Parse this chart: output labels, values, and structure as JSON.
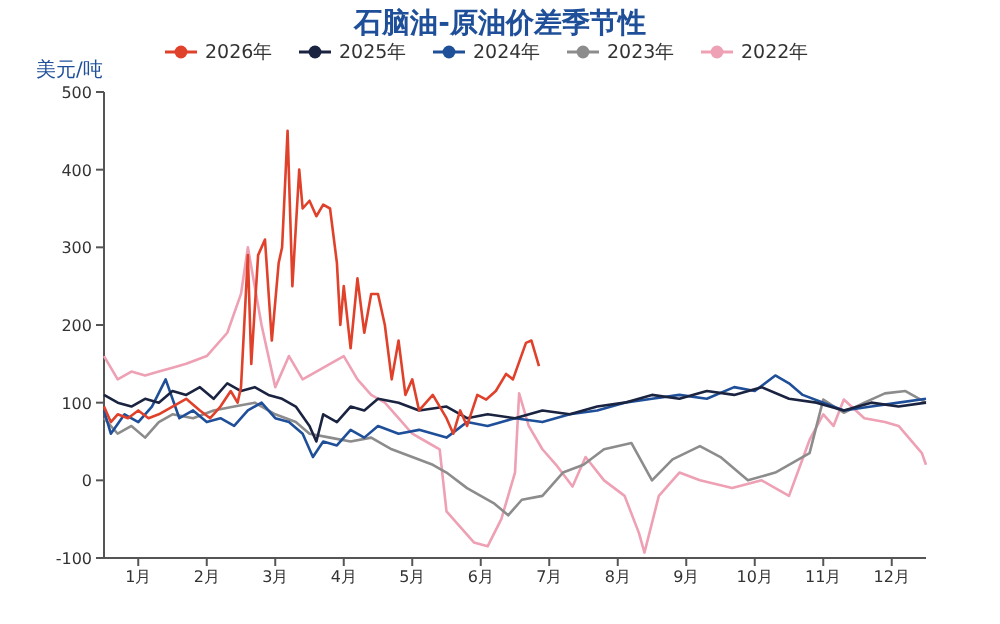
{
  "chart_data": {
    "type": "line",
    "title": "石脑油-原油价差季节性",
    "ylabel": "美元/吨",
    "legend": "top",
    "marker": "none",
    "grid": false,
    "xlim": [
      0,
      12
    ],
    "xticks": [
      {
        "value": 0.5,
        "label": "1月"
      },
      {
        "value": 1.5,
        "label": "2月"
      },
      {
        "value": 2.5,
        "label": "3月"
      },
      {
        "value": 3.5,
        "label": "4月"
      },
      {
        "value": 4.5,
        "label": "5月"
      },
      {
        "value": 5.5,
        "label": "6月"
      },
      {
        "value": 6.5,
        "label": "7月"
      },
      {
        "value": 7.5,
        "label": "8月"
      },
      {
        "value": 8.5,
        "label": "9月"
      },
      {
        "value": 9.5,
        "label": "10月"
      },
      {
        "value": 10.5,
        "label": "11月"
      },
      {
        "value": 11.5,
        "label": "12月"
      }
    ],
    "ylim": [
      -100,
      500
    ],
    "yticks": [
      -100,
      0,
      100,
      200,
      300,
      400,
      500
    ],
    "series": [
      {
        "name": "2026年",
        "color": "#e0412b",
        "x": [
          0,
          0.1,
          0.2,
          0.35,
          0.5,
          0.65,
          0.8,
          1.0,
          1.2,
          1.4,
          1.55,
          1.7,
          1.85,
          1.95,
          2.0,
          2.1,
          2.15,
          2.25,
          2.35,
          2.45,
          2.55,
          2.6,
          2.68,
          2.75,
          2.85,
          2.9,
          3.0,
          3.1,
          3.2,
          3.3,
          3.4,
          3.45,
          3.5,
          3.6,
          3.7,
          3.8,
          3.9,
          4.0,
          4.1,
          4.2,
          4.3,
          4.4,
          4.5,
          4.6,
          4.8,
          5.0,
          5.1,
          5.2,
          5.3,
          5.45,
          5.58,
          5.72,
          5.87,
          5.97,
          6.16,
          6.24,
          6.35
        ],
        "values": [
          95,
          75,
          85,
          80,
          90,
          80,
          85,
          95,
          105,
          90,
          80,
          95,
          115,
          100,
          120,
          290,
          150,
          290,
          310,
          180,
          280,
          300,
          450,
          250,
          400,
          350,
          360,
          340,
          355,
          350,
          280,
          200,
          250,
          170,
          260,
          190,
          240,
          240,
          200,
          130,
          180,
          110,
          130,
          90,
          110,
          80,
          60,
          90,
          70,
          110,
          104,
          115,
          137,
          130,
          177,
          180,
          147
        ]
      },
      {
        "name": "2025年",
        "color": "#1a2340",
        "x": [
          0,
          0.2,
          0.4,
          0.6,
          0.8,
          1.0,
          1.2,
          1.4,
          1.6,
          1.8,
          2.0,
          2.2,
          2.4,
          2.6,
          2.8,
          3.0,
          3.1,
          3.2,
          3.4,
          3.6,
          3.8,
          4.0,
          4.3,
          4.6,
          5.0,
          5.3,
          5.6,
          6.0,
          6.4,
          6.8,
          7.2,
          7.6,
          8.0,
          8.4,
          8.8,
          9.2,
          9.6,
          10.0,
          10.4,
          10.8,
          11.2,
          11.6,
          12.0
        ],
        "values": [
          110,
          100,
          95,
          105,
          100,
          115,
          110,
          120,
          105,
          125,
          115,
          120,
          110,
          105,
          95,
          70,
          50,
          85,
          75,
          95,
          90,
          105,
          100,
          90,
          95,
          80,
          85,
          80,
          90,
          85,
          95,
          100,
          110,
          105,
          115,
          110,
          120,
          105,
          100,
          90,
          100,
          95,
          100
        ]
      },
      {
        "name": "2024年",
        "color": "#1f4f99",
        "x": [
          0,
          0.1,
          0.3,
          0.5,
          0.7,
          0.9,
          1.1,
          1.3,
          1.5,
          1.7,
          1.9,
          2.1,
          2.3,
          2.5,
          2.7,
          2.9,
          3.05,
          3.2,
          3.4,
          3.6,
          3.8,
          4.0,
          4.3,
          4.6,
          5.0,
          5.3,
          5.6,
          6.0,
          6.4,
          6.8,
          7.2,
          7.6,
          8.0,
          8.4,
          8.8,
          9.2,
          9.5,
          9.8,
          10.0,
          10.2,
          10.5,
          10.8,
          11.2,
          11.6,
          12.0
        ],
        "values": [
          90,
          60,
          85,
          75,
          95,
          130,
          80,
          90,
          75,
          80,
          70,
          90,
          100,
          80,
          75,
          60,
          30,
          50,
          45,
          65,
          55,
          70,
          60,
          65,
          55,
          75,
          70,
          80,
          75,
          85,
          90,
          100,
          105,
          110,
          105,
          120,
          115,
          135,
          125,
          110,
          100,
          90,
          95,
          100,
          105
        ]
      },
      {
        "name": "2023年",
        "color": "#8c8c8c",
        "x": [
          0,
          0.2,
          0.4,
          0.6,
          0.8,
          1.0,
          1.3,
          1.6,
          1.9,
          2.2,
          2.5,
          2.8,
          3.0,
          3.3,
          3.6,
          3.9,
          4.2,
          4.5,
          4.8,
          5.0,
          5.3,
          5.5,
          5.7,
          5.9,
          6.1,
          6.4,
          6.7,
          7.0,
          7.3,
          7.7,
          8.0,
          8.3,
          8.7,
          9.0,
          9.4,
          9.8,
          10.3,
          10.5,
          10.8,
          11.1,
          11.4,
          11.7,
          12.0
        ],
        "values": [
          80,
          60,
          70,
          55,
          75,
          85,
          80,
          90,
          95,
          100,
          85,
          75,
          60,
          55,
          50,
          55,
          40,
          30,
          20,
          10,
          -10,
          -20,
          -30,
          -45,
          -25,
          -20,
          10,
          20,
          40,
          48,
          0,
          27,
          44,
          30,
          0,
          10,
          35,
          104,
          87,
          100,
          112,
          115,
          100
        ]
      },
      {
        "name": "2022年",
        "color": "#eea0b4",
        "x": [
          0,
          0.2,
          0.4,
          0.6,
          0.8,
          1.0,
          1.2,
          1.5,
          1.8,
          2.0,
          2.1,
          2.2,
          2.3,
          2.5,
          2.7,
          2.9,
          3.1,
          3.3,
          3.5,
          3.7,
          3.9,
          4.1,
          4.3,
          4.5,
          4.7,
          4.9,
          5.0,
          5.2,
          5.4,
          5.6,
          5.8,
          6.0,
          6.06,
          6.2,
          6.4,
          6.6,
          6.84,
          7.03,
          7.3,
          7.6,
          7.81,
          7.89,
          8.1,
          8.4,
          8.7,
          9.17,
          9.6,
          10.0,
          10.3,
          10.5,
          10.65,
          10.8,
          11.1,
          11.4,
          11.6,
          11.94,
          12.0
        ],
        "values": [
          160,
          130,
          140,
          135,
          140,
          145,
          150,
          160,
          190,
          240,
          300,
          250,
          200,
          120,
          160,
          130,
          140,
          150,
          160,
          130,
          110,
          100,
          80,
          60,
          50,
          40,
          -40,
          -60,
          -80,
          -85,
          -50,
          10,
          112,
          70,
          40,
          20,
          -8,
          30,
          0,
          -20,
          -68,
          -93,
          -20,
          10,
          0,
          -10,
          0,
          -20,
          52,
          85,
          70,
          104,
          80,
          75,
          70,
          35,
          20
        ]
      }
    ]
  }
}
